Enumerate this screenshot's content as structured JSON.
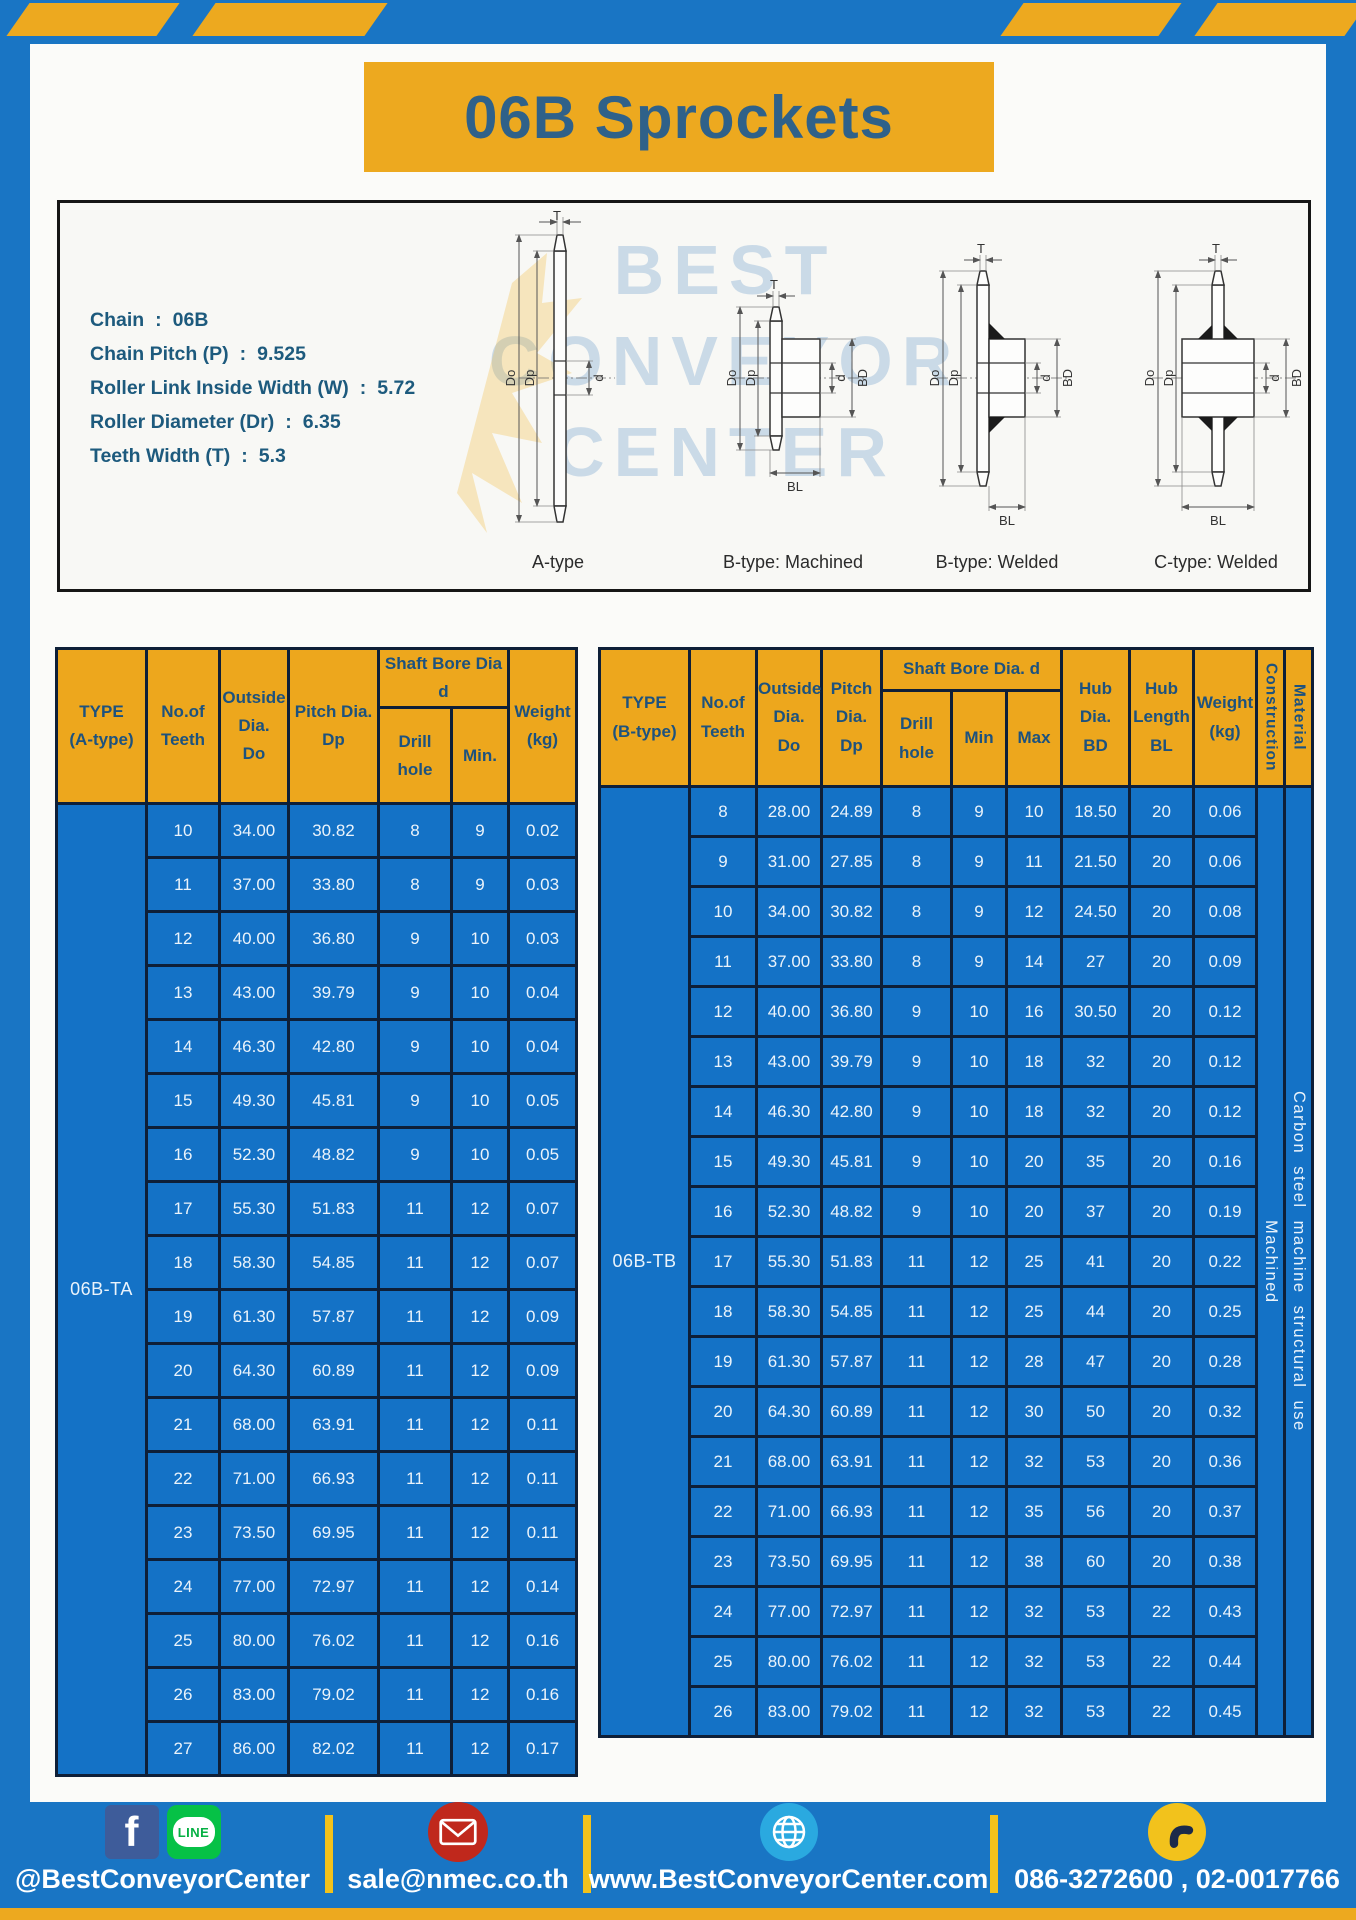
{
  "page": {
    "title": "06B Sprockets"
  },
  "specs": {
    "separator": ":",
    "lines": [
      {
        "label": "Chain",
        "value": "06B"
      },
      {
        "label": "Chain Pitch (P)",
        "value": "9.525"
      },
      {
        "label": "Roller Link Inside Width (W)",
        "value": "5.72"
      },
      {
        "label": "Roller Diameter (Dr)",
        "value": "6.35"
      },
      {
        "label": "Teeth Width (T)",
        "value": "5.3"
      }
    ]
  },
  "diagram": {
    "watermark": "BEST CONVEYOR CENTER",
    "captions": [
      "A-type",
      "B-type: Machined",
      "B-type: Welded",
      "C-type: Welded"
    ],
    "dims": {
      "T": "T",
      "Do": "Do",
      "Dp": "Dp",
      "d": "d",
      "BD": "BD",
      "BL": "BL"
    }
  },
  "table_a": {
    "type_label": "06B-TA",
    "headers": {
      "type": "TYPE\n(A-type)",
      "teeth": "No.of\nTeeth",
      "outside": "Outside\nDia.\nDo",
      "pitch": "Pitch Dia.\nDp",
      "shaft_group": "Shaft Bore Dia d",
      "drill": "Drill hole",
      "min": "Min.",
      "weight": "Weight\n(kg)"
    },
    "rows": [
      [
        "10",
        "34.00",
        "30.82",
        "8",
        "9",
        "0.02"
      ],
      [
        "11",
        "37.00",
        "33.80",
        "8",
        "9",
        "0.03"
      ],
      [
        "12",
        "40.00",
        "36.80",
        "9",
        "10",
        "0.03"
      ],
      [
        "13",
        "43.00",
        "39.79",
        "9",
        "10",
        "0.04"
      ],
      [
        "14",
        "46.30",
        "42.80",
        "9",
        "10",
        "0.04"
      ],
      [
        "15",
        "49.30",
        "45.81",
        "9",
        "10",
        "0.05"
      ],
      [
        "16",
        "52.30",
        "48.82",
        "9",
        "10",
        "0.05"
      ],
      [
        "17",
        "55.30",
        "51.83",
        "11",
        "12",
        "0.07"
      ],
      [
        "18",
        "58.30",
        "54.85",
        "11",
        "12",
        "0.07"
      ],
      [
        "19",
        "61.30",
        "57.87",
        "11",
        "12",
        "0.09"
      ],
      [
        "20",
        "64.30",
        "60.89",
        "11",
        "12",
        "0.09"
      ],
      [
        "21",
        "68.00",
        "63.91",
        "11",
        "12",
        "0.11"
      ],
      [
        "22",
        "71.00",
        "66.93",
        "11",
        "12",
        "0.11"
      ],
      [
        "23",
        "73.50",
        "69.95",
        "11",
        "12",
        "0.11"
      ],
      [
        "24",
        "77.00",
        "72.97",
        "11",
        "12",
        "0.14"
      ],
      [
        "25",
        "80.00",
        "76.02",
        "11",
        "12",
        "0.16"
      ],
      [
        "26",
        "83.00",
        "79.02",
        "11",
        "12",
        "0.16"
      ],
      [
        "27",
        "86.00",
        "82.02",
        "11",
        "12",
        "0.17"
      ]
    ]
  },
  "table_b": {
    "type_label": "06B-TB",
    "construction": "Machined",
    "material": "Carbon steel machine structural use",
    "headers": {
      "type": "TYPE\n(B-type)",
      "teeth": "No.of\nTeeth",
      "outside": "Outside\nDia.\nDo",
      "pitch": "Pitch\nDia.\nDp",
      "shaft_group": "Shaft Bore Dia. d",
      "drill": "Drill hole",
      "min": "Min",
      "max": "Max",
      "hub_dia": "Hub\nDia.\nBD",
      "hub_len": "Hub\nLength\nBL",
      "weight": "Weight\n(kg)",
      "construction": "Construction",
      "material": "Material"
    },
    "rows": [
      [
        "8",
        "28.00",
        "24.89",
        "8",
        "9",
        "10",
        "18.50",
        "20",
        "0.06"
      ],
      [
        "9",
        "31.00",
        "27.85",
        "8",
        "9",
        "11",
        "21.50",
        "20",
        "0.06"
      ],
      [
        "10",
        "34.00",
        "30.82",
        "8",
        "9",
        "12",
        "24.50",
        "20",
        "0.08"
      ],
      [
        "11",
        "37.00",
        "33.80",
        "8",
        "9",
        "14",
        "27",
        "20",
        "0.09"
      ],
      [
        "12",
        "40.00",
        "36.80",
        "9",
        "10",
        "16",
        "30.50",
        "20",
        "0.12"
      ],
      [
        "13",
        "43.00",
        "39.79",
        "9",
        "10",
        "18",
        "32",
        "20",
        "0.12"
      ],
      [
        "14",
        "46.30",
        "42.80",
        "9",
        "10",
        "18",
        "32",
        "20",
        "0.12"
      ],
      [
        "15",
        "49.30",
        "45.81",
        "9",
        "10",
        "20",
        "35",
        "20",
        "0.16"
      ],
      [
        "16",
        "52.30",
        "48.82",
        "9",
        "10",
        "20",
        "37",
        "20",
        "0.19"
      ],
      [
        "17",
        "55.30",
        "51.83",
        "11",
        "12",
        "25",
        "41",
        "20",
        "0.22"
      ],
      [
        "18",
        "58.30",
        "54.85",
        "11",
        "12",
        "25",
        "44",
        "20",
        "0.25"
      ],
      [
        "19",
        "61.30",
        "57.87",
        "11",
        "12",
        "28",
        "47",
        "20",
        "0.28"
      ],
      [
        "20",
        "64.30",
        "60.89",
        "11",
        "12",
        "30",
        "50",
        "20",
        "0.32"
      ],
      [
        "21",
        "68.00",
        "63.91",
        "11",
        "12",
        "32",
        "53",
        "20",
        "0.36"
      ],
      [
        "22",
        "71.00",
        "66.93",
        "11",
        "12",
        "35",
        "56",
        "20",
        "0.37"
      ],
      [
        "23",
        "73.50",
        "69.95",
        "11",
        "12",
        "38",
        "60",
        "20",
        "0.38"
      ],
      [
        "24",
        "77.00",
        "72.97",
        "11",
        "12",
        "32",
        "53",
        "22",
        "0.43"
      ],
      [
        "25",
        "80.00",
        "76.02",
        "11",
        "12",
        "32",
        "53",
        "22",
        "0.44"
      ],
      [
        "26",
        "83.00",
        "79.02",
        "11",
        "12",
        "32",
        "53",
        "22",
        "0.45"
      ]
    ]
  },
  "footer": {
    "facebook_glyph": "f",
    "line_label": "LINE",
    "social_handle": "@BestConveyorCenter",
    "email": "sale@nmec.co.th",
    "website": "www.BestConveyorCenter.com",
    "phone": "086-3272600 , 02-0017766"
  },
  "colors": {
    "brand_yellow": "#EDA91F",
    "frame_blue": "#1975C4",
    "table_blue": "#1472C6",
    "border_navy": "#0E1F38",
    "header_text": "#1D527E",
    "title_text": "#2F6189",
    "facebook": "#3E5C9A",
    "line": "#06C146",
    "email_red": "#C0281C",
    "globe_blue": "#2AA9E0",
    "phone_yellow": "#F2C21C"
  }
}
